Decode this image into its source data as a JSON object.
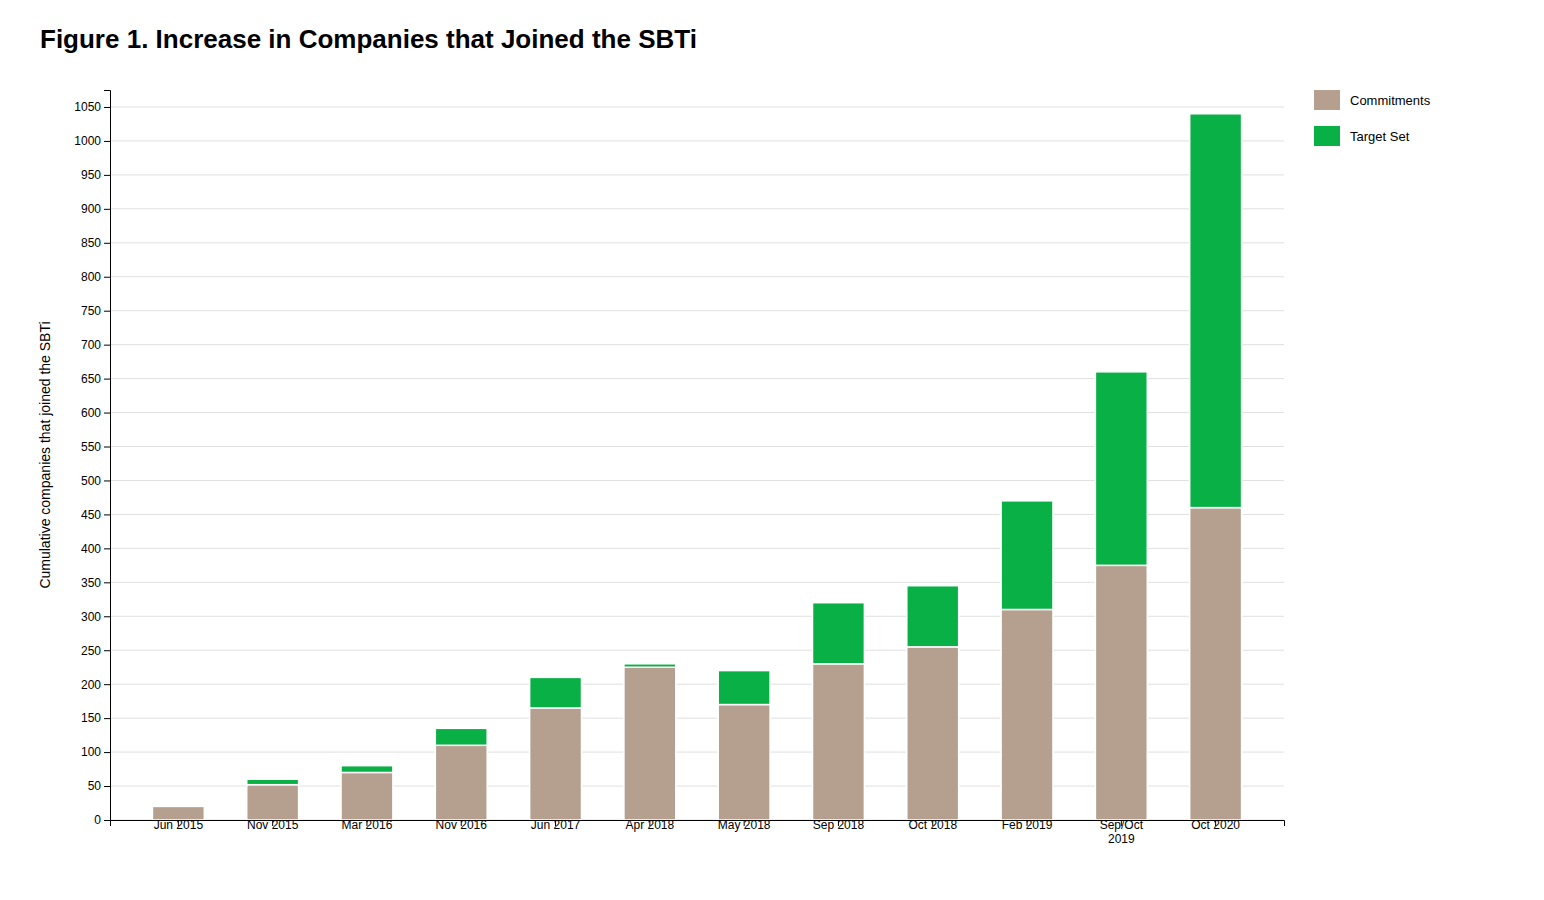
{
  "chart_data": {
    "type": "bar",
    "stacked": true,
    "title": "Figure 1. Increase in Companies that Joined the SBTi",
    "ylabel": "Cumulative companies that joined the SBTi",
    "categories": [
      "Jun 2015",
      "Nov 2015",
      "Mar 2016",
      "Nov 2016",
      "Jun 2017",
      "Apr 2018",
      "May 2018",
      "Sep 2018",
      "Oct 2018",
      "Feb 2019",
      "Sep/Oct\n2019",
      "Oct 2020"
    ],
    "series": [
      {
        "name": "Commitments",
        "color": "#b5a090",
        "values": [
          20,
          52,
          70,
          110,
          165,
          225,
          170,
          230,
          255,
          310,
          375,
          460
        ]
      },
      {
        "name": "Target Set",
        "color": "#09b045",
        "values": [
          0,
          8,
          10,
          25,
          45,
          5,
          50,
          90,
          90,
          160,
          285,
          580
        ]
      }
    ],
    "ylim": [
      0,
      1075
    ],
    "yticks": [
      0,
      50,
      100,
      150,
      200,
      250,
      300,
      350,
      400,
      450,
      500,
      550,
      600,
      650,
      700,
      750,
      800,
      850,
      900,
      950,
      1000,
      1050
    ],
    "grid": true,
    "legend": "right"
  }
}
